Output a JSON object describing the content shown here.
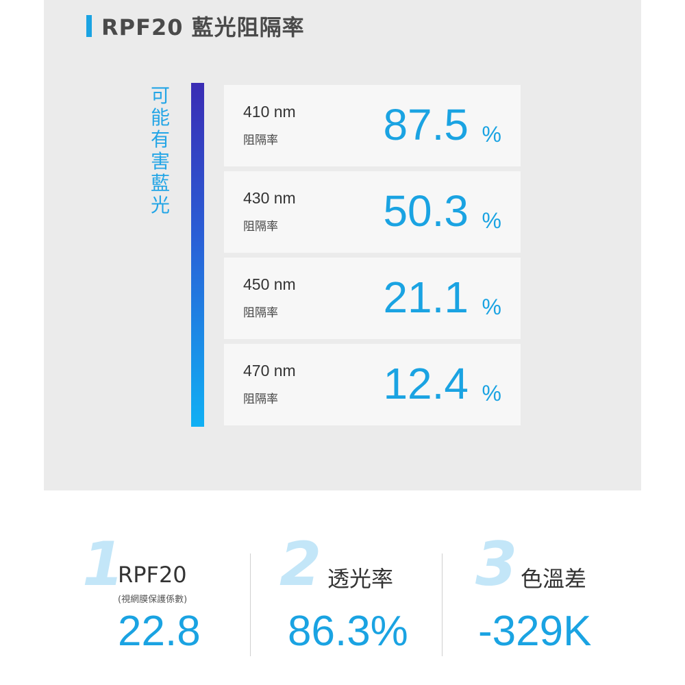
{
  "title": "RPF20 藍光阻隔率",
  "side_label": "可能有害藍光",
  "cards": [
    {
      "wavelength": "410 nm",
      "label": "阻隔率",
      "value": "87.5",
      "unit": "%"
    },
    {
      "wavelength": "430 nm",
      "label": "阻隔率",
      "value": "50.3",
      "unit": "%"
    },
    {
      "wavelength": "450 nm",
      "label": "阻隔率",
      "value": "21.1",
      "unit": "%"
    },
    {
      "wavelength": "470 nm",
      "label": "阻隔率",
      "value": "12.4",
      "unit": "%"
    }
  ],
  "stats": [
    {
      "number": "1",
      "label": "RPF20",
      "sub": "(視網膜保護係數)",
      "value": "22.8"
    },
    {
      "number": "2",
      "label": "透光率",
      "sub": "",
      "value": "86.3%"
    },
    {
      "number": "3",
      "label": "色溫差",
      "sub": "",
      "value": "-329K"
    }
  ],
  "colors": {
    "accent": "#1aa3e2",
    "panel": "#ebebeb",
    "card": "#f7f7f7"
  }
}
